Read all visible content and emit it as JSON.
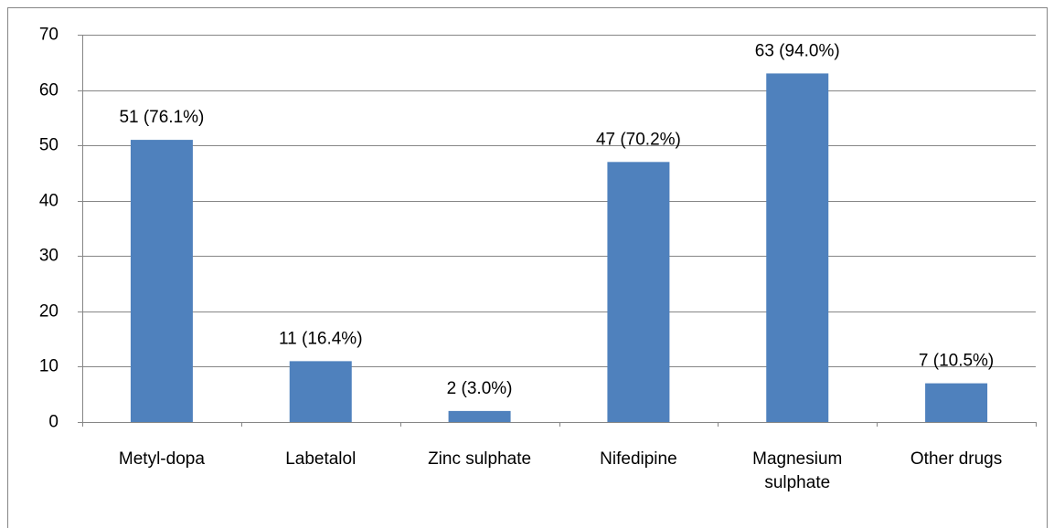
{
  "chart_data": {
    "type": "bar",
    "categories": [
      "Metyl-dopa",
      "Labetalol",
      "Zinc sulphate",
      "Nifedipine",
      "Magnesium sulphate",
      "Other drugs"
    ],
    "values": [
      51,
      11,
      2,
      47,
      63,
      7
    ],
    "value_labels": [
      "51 (76.1%)",
      "11 (16.4%)",
      "2 (3.0%)",
      "47 (70.2%)",
      "63 (94.0%)",
      "7 (10.5%)"
    ],
    "color": "#4f81bd",
    "ylim": [
      0,
      70
    ],
    "yticks": [
      0,
      10,
      20,
      30,
      40,
      50,
      60,
      70
    ],
    "grid": true
  }
}
